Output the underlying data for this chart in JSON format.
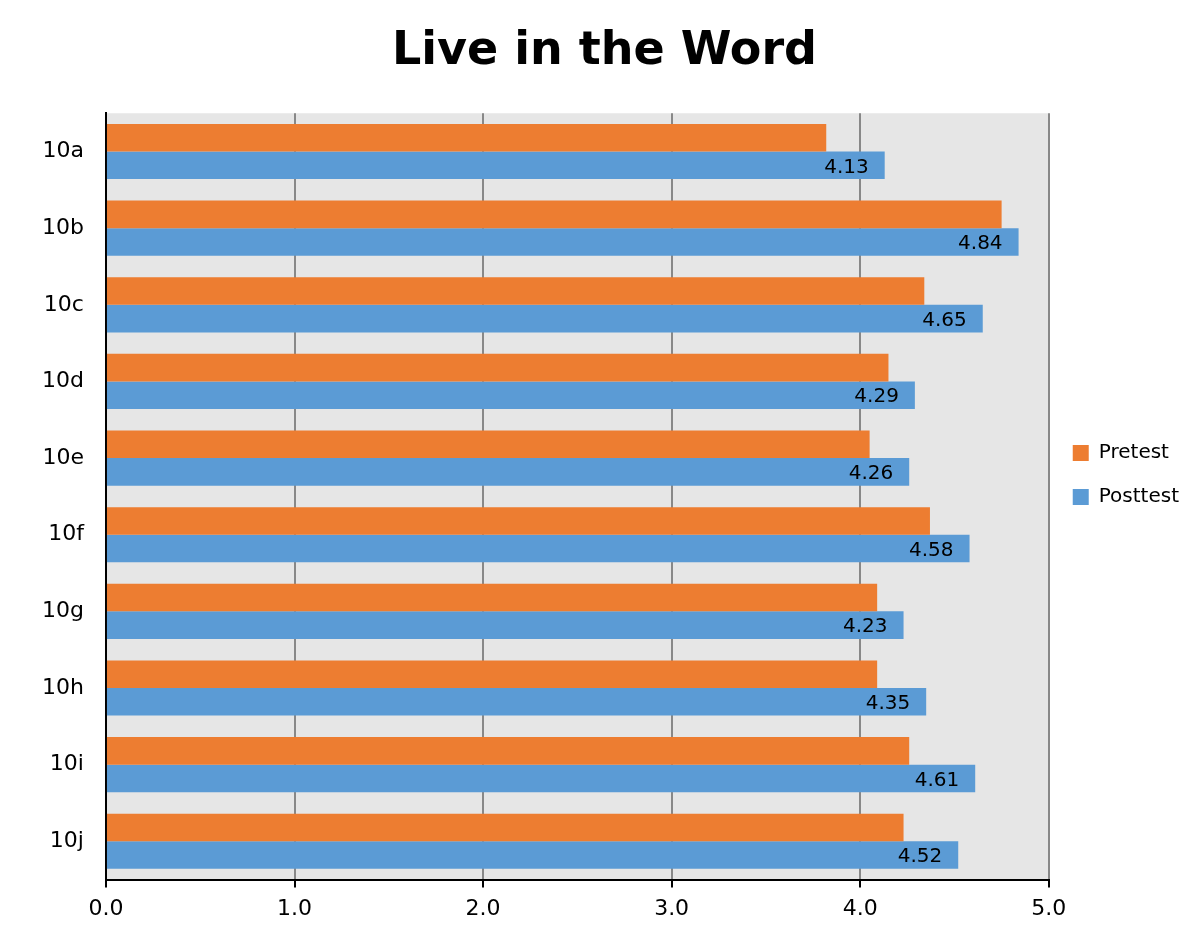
{
  "chart_data": {
    "type": "bar",
    "orientation": "horizontal",
    "title": "Live in the Word",
    "categories": [
      "10a",
      "10b",
      "10c",
      "10d",
      "10e",
      "10f",
      "10g",
      "10h",
      "10i",
      "10j"
    ],
    "series": [
      {
        "name": "Pretest",
        "color": "#ed7d31",
        "values": [
          3.82,
          4.75,
          4.34,
          4.15,
          4.05,
          4.37,
          4.09,
          4.09,
          4.26,
          4.23
        ]
      },
      {
        "name": "Posttest",
        "color": "#5b9bd5",
        "values": [
          4.13,
          4.84,
          4.65,
          4.29,
          4.26,
          4.58,
          4.23,
          4.35,
          4.61,
          4.52
        ],
        "value_labels": [
          "4.13",
          "4.84",
          "4.65",
          "4.29",
          "4.26",
          "4.58",
          "4.23",
          "4.35",
          "4.61",
          "4.52"
        ]
      }
    ],
    "xlim": [
      0,
      5
    ],
    "xticks": [
      {
        "value": 0,
        "label": "0.0"
      },
      {
        "value": 1,
        "label": "1.0"
      },
      {
        "value": 2,
        "label": "2.0"
      },
      {
        "value": 3,
        "label": "3.0"
      },
      {
        "value": 4,
        "label": "4.0"
      },
      {
        "value": 5,
        "label": "5.0"
      }
    ],
    "grid": "x",
    "legend": "right"
  }
}
